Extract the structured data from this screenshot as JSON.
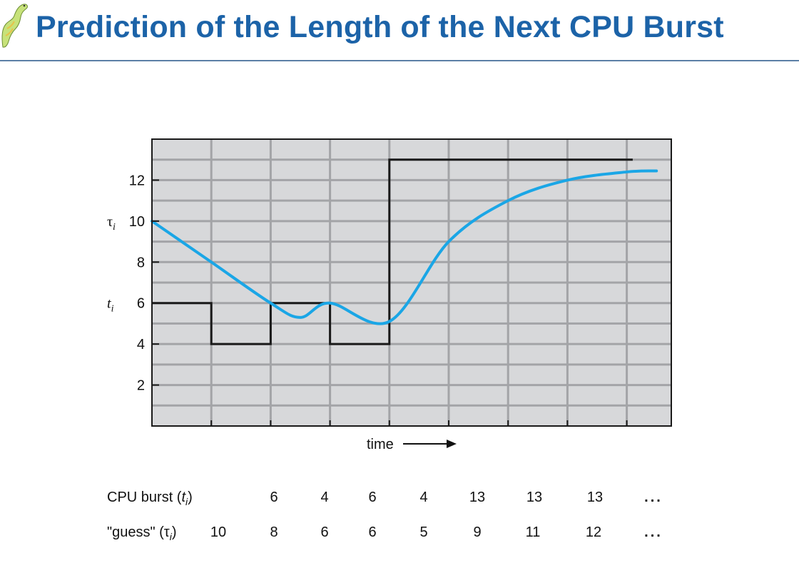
{
  "slide": {
    "title": "Prediction of the Length of the Next CPU Burst",
    "logo_icon": "dinosaur-logo-icon"
  },
  "chart_data": {
    "type": "line",
    "xlabel": "time",
    "ylim": [
      0,
      14
    ],
    "y_ticks": [
      2,
      4,
      6,
      8,
      10,
      12
    ],
    "grid": true,
    "series": [
      {
        "name": "CPU burst (t_i)",
        "symbol": "t",
        "subscript": "i",
        "style": "step",
        "color": "#1a1a1a",
        "intervals": [
          {
            "start": 0,
            "end": 1,
            "value": 6
          },
          {
            "start": 1,
            "end": 2,
            "value": 4
          },
          {
            "start": 2,
            "end": 3,
            "value": 6
          },
          {
            "start": 3,
            "end": 4,
            "value": 4
          },
          {
            "start": 4,
            "end": 5,
            "value": 13
          },
          {
            "start": 5,
            "end": 6,
            "value": 13
          },
          {
            "start": 6,
            "end": 8.1,
            "value": 13
          }
        ]
      },
      {
        "name": "guess (τ_i)",
        "symbol": "τ",
        "subscript": "i",
        "style": "smooth",
        "color": "#1aa6e6",
        "x": [
          0,
          1,
          2,
          2.5,
          3,
          4,
          5,
          6,
          7,
          8,
          8.5
        ],
        "y": [
          10,
          8,
          6,
          5.3,
          6,
          5.1,
          9,
          11,
          12,
          12.4,
          12.45
        ]
      }
    ],
    "table": {
      "burst_label": "CPU burst (",
      "burst_label_var": "t",
      "burst_label_sub": "i",
      "burst_label_close": ")",
      "guess_label": "\"guess\" (",
      "guess_label_var": "τ",
      "guess_label_sub": "i",
      "guess_label_close": ")",
      "burst_values": [
        "6",
        "4",
        "6",
        "4",
        "13",
        "13",
        "13",
        "..."
      ],
      "guess_values": [
        "10",
        "8",
        "6",
        "6",
        "5",
        "9",
        "11",
        "12",
        "..."
      ]
    }
  }
}
